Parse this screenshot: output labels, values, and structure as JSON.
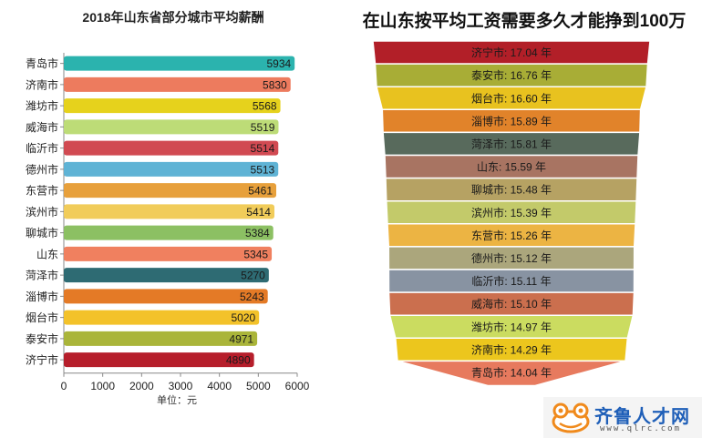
{
  "chart_data": [
    {
      "type": "bar",
      "orientation": "horizontal",
      "title": "2018年山东省部分城市平均薪酬",
      "xlabel": "单位：元",
      "xlim": [
        0,
        6000
      ],
      "xticks": [
        0,
        1000,
        2000,
        3000,
        4000,
        5000,
        6000
      ],
      "grid": false,
      "categories": [
        "青岛市",
        "济南市",
        "潍坊市",
        "威海市",
        "临沂市",
        "德州市",
        "东营市",
        "滨州市",
        "聊城市",
        "山东",
        "菏泽市",
        "淄博市",
        "烟台市",
        "泰安市",
        "济宁市"
      ],
      "values": [
        5934,
        5830,
        5568,
        5519,
        5514,
        5513,
        5461,
        5414,
        5384,
        5345,
        5270,
        5243,
        5020,
        4971,
        4890
      ],
      "colors": [
        "#2bb3ae",
        "#ed7b5e",
        "#e6d21c",
        "#bddc77",
        "#d14a52",
        "#5fb3d5",
        "#e7a03c",
        "#f1cc5a",
        "#8cc063",
        "#f0805f",
        "#2e6b73",
        "#e47a26",
        "#f3c22a",
        "#aab53a",
        "#b61e2b"
      ]
    },
    {
      "type": "funnel",
      "title": "在山东按平均工资需要多久才能挣到100万",
      "unit": "年",
      "categories": [
        "济宁市",
        "泰安市",
        "烟台市",
        "淄博市",
        "菏泽市",
        "山东",
        "聊城市",
        "滨州市",
        "东营市",
        "德州市",
        "临沂市",
        "威海市",
        "潍坊市",
        "济南市",
        "青岛市"
      ],
      "values": [
        17.04,
        16.76,
        16.6,
        15.89,
        15.81,
        15.59,
        15.48,
        15.39,
        15.26,
        15.12,
        15.11,
        15.1,
        14.97,
        14.29,
        14.04
      ],
      "labels": [
        "济宁市: 17.04 年",
        "泰安市: 16.76 年",
        "烟台市: 16.60 年",
        "淄博市: 15.89 年",
        "菏泽市: 15.81 年",
        "山东: 15.59 年",
        "聊城市: 15.48 年",
        "滨州市: 15.39 年",
        "东营市: 15.26 年",
        "德州市: 15.12 年",
        "临沂市: 15.11 年",
        "威海市: 15.10 年",
        "潍坊市: 14.97 年",
        "济南市: 14.29 年",
        "青岛市: 14.04 年"
      ],
      "colors": [
        "#b21f28",
        "#a8ad36",
        "#e8c21f",
        "#e1832a",
        "#586a5c",
        "#a87462",
        "#b6a263",
        "#c3ca6a",
        "#ecb443",
        "#aba67c",
        "#8893a2",
        "#cb6f4e",
        "#cbdc60",
        "#ecc61d",
        "#e77a5e"
      ]
    }
  ],
  "logo": {
    "text": "齐鲁人才网",
    "url": "www.qlrc.com",
    "color": "#1f5fb8"
  }
}
